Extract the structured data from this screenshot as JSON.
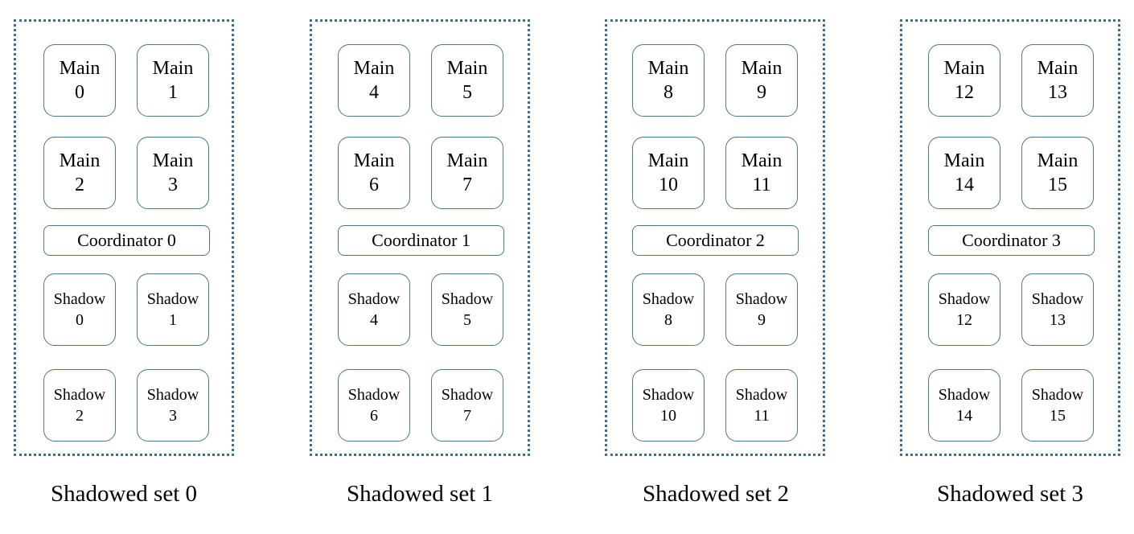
{
  "sets": [
    {
      "caption": "Shadowed set 0",
      "mains": [
        {
          "label": "Main",
          "num": "0"
        },
        {
          "label": "Main",
          "num": "1"
        },
        {
          "label": "Main",
          "num": "2"
        },
        {
          "label": "Main",
          "num": "3"
        }
      ],
      "coordinator": "Coordinator 0",
      "shadows": [
        {
          "label": "Shadow",
          "num": "0"
        },
        {
          "label": "Shadow",
          "num": "1"
        },
        {
          "label": "Shadow",
          "num": "2"
        },
        {
          "label": "Shadow",
          "num": "3"
        }
      ]
    },
    {
      "caption": "Shadowed set 1",
      "mains": [
        {
          "label": "Main",
          "num": "4"
        },
        {
          "label": "Main",
          "num": "5"
        },
        {
          "label": "Main",
          "num": "6"
        },
        {
          "label": "Main",
          "num": "7"
        }
      ],
      "coordinator": "Coordinator 1",
      "shadows": [
        {
          "label": "Shadow",
          "num": "4"
        },
        {
          "label": "Shadow",
          "num": "5"
        },
        {
          "label": "Shadow",
          "num": "6"
        },
        {
          "label": "Shadow",
          "num": "7"
        }
      ]
    },
    {
      "caption": "Shadowed set 2",
      "mains": [
        {
          "label": "Main",
          "num": "8"
        },
        {
          "label": "Main",
          "num": "9"
        },
        {
          "label": "Main",
          "num": "10"
        },
        {
          "label": "Main",
          "num": "11"
        }
      ],
      "coordinator": "Coordinator 2",
      "shadows": [
        {
          "label": "Shadow",
          "num": "8"
        },
        {
          "label": "Shadow",
          "num": "9"
        },
        {
          "label": "Shadow",
          "num": "10"
        },
        {
          "label": "Shadow",
          "num": "11"
        }
      ]
    },
    {
      "caption": "Shadowed set 3",
      "mains": [
        {
          "label": "Main",
          "num": "12"
        },
        {
          "label": "Main",
          "num": "13"
        },
        {
          "label": "Main",
          "num": "14"
        },
        {
          "label": "Main",
          "num": "15"
        }
      ],
      "coordinator": "Coordinator 3",
      "shadows": [
        {
          "label": "Shadow",
          "num": "12"
        },
        {
          "label": "Shadow",
          "num": "13"
        },
        {
          "label": "Shadow",
          "num": "14"
        },
        {
          "label": "Shadow",
          "num": "15"
        }
      ]
    }
  ]
}
